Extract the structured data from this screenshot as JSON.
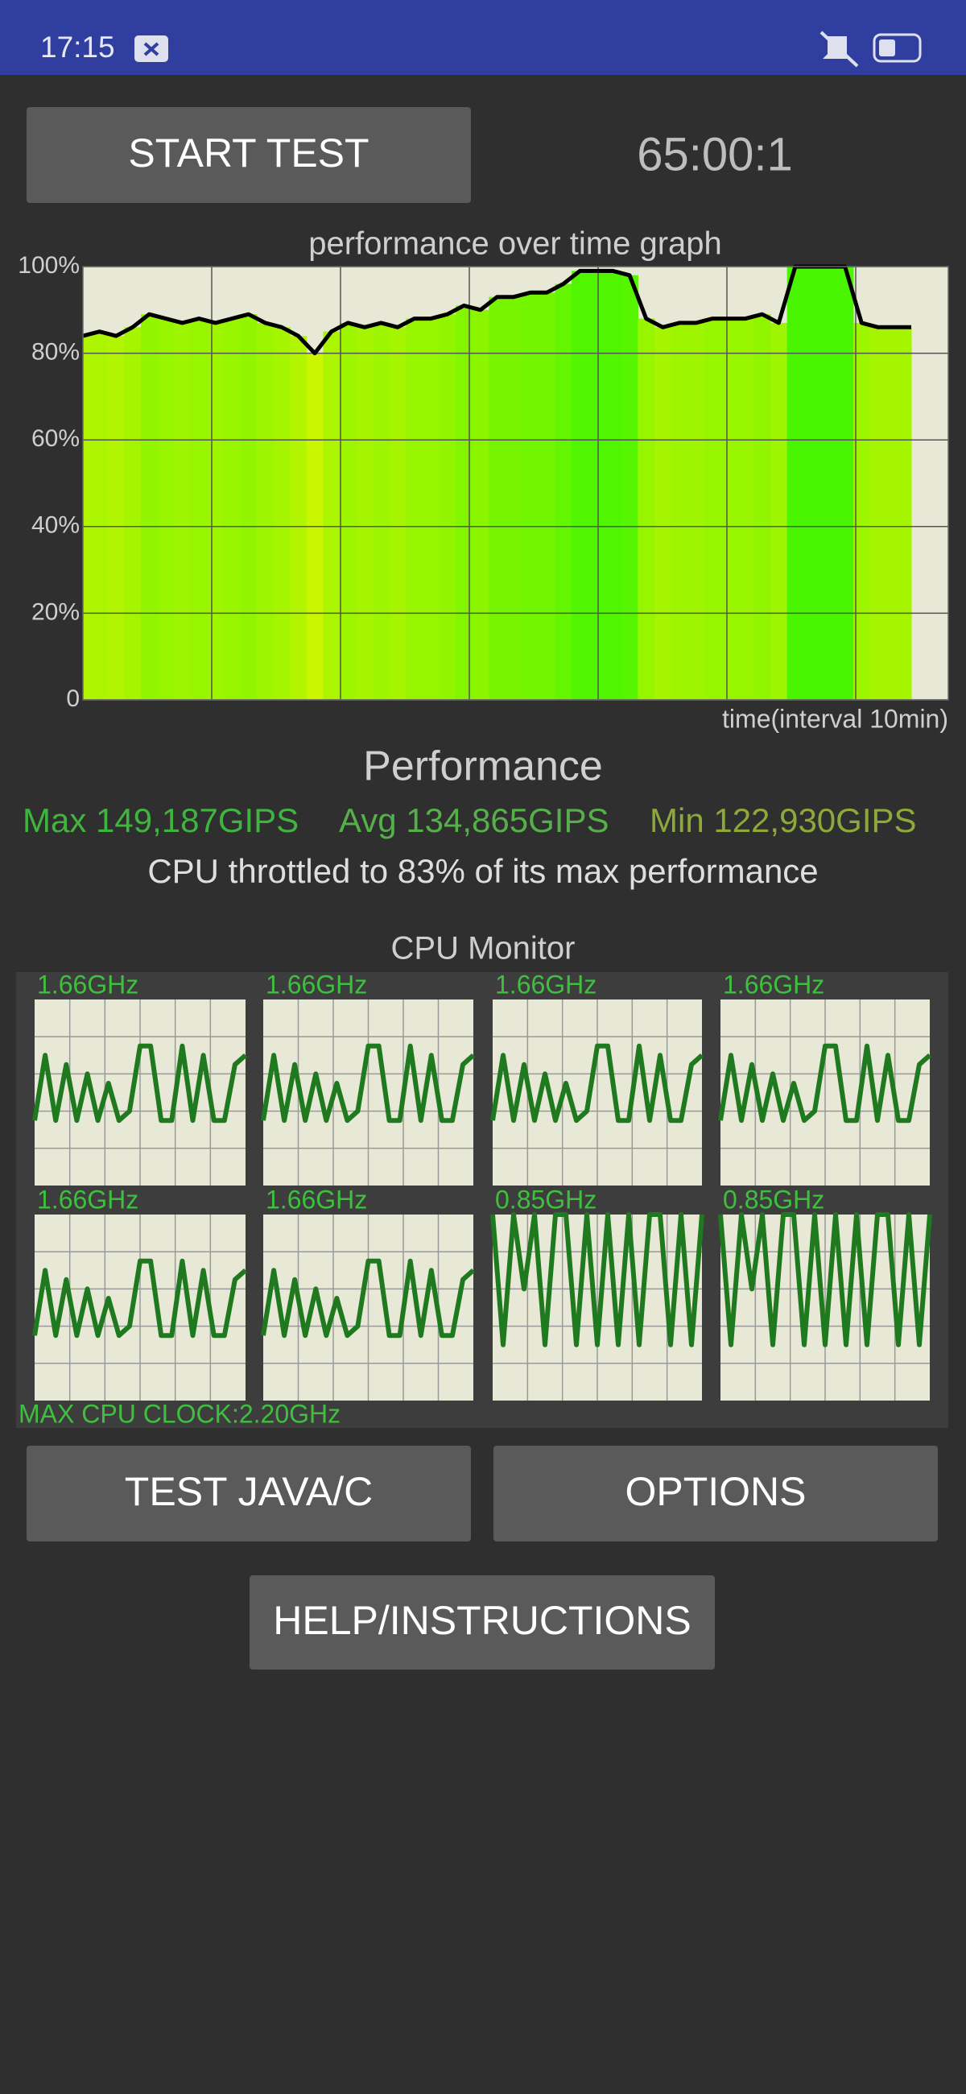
{
  "status_bar": {
    "time": "17:15"
  },
  "buttons": {
    "start": "START TEST",
    "java": "TEST JAVA/C",
    "options": "OPTIONS",
    "help": "HELP/INSTRUCTIONS"
  },
  "timer": "65:00:1",
  "chart_data": {
    "type": "line",
    "title": "performance over time graph",
    "x_label": "time(interval 10min)",
    "values": [
      84,
      85,
      84,
      86,
      89,
      88,
      87,
      88,
      87,
      88,
      89,
      87,
      86,
      84,
      80,
      85,
      87,
      86,
      87,
      86,
      88,
      88,
      89,
      91,
      90,
      93,
      93,
      94,
      94,
      96,
      99,
      99,
      99,
      98,
      88,
      86,
      87,
      87,
      88,
      88,
      88,
      89,
      87,
      100,
      100,
      100,
      100,
      87,
      86,
      86,
      86
    ],
    "color": "#000000",
    "ylim": [
      0,
      100
    ],
    "yticks": [
      0,
      {
        "value": 20,
        "label": "20%"
      },
      {
        "value": 40,
        "label": "40%"
      },
      {
        "value": 60,
        "label": "60%"
      },
      {
        "value": 80,
        "label": "80%"
      },
      {
        "value": 100,
        "label": "100%"
      }
    ],
    "grid": true
  },
  "performance": {
    "heading": "Performance",
    "max": "Max 149,187GIPS",
    "avg": "Avg 134,865GIPS",
    "min": "Min 122,930GIPS",
    "throttle": "CPU throttled to 83% of its max performance"
  },
  "cpu_monitor": {
    "title": "CPU Monitor",
    "max_clock": "MAX CPU CLOCK:2.20GHz",
    "cores": [
      {
        "label": "1.66GHz",
        "values": [
          35,
          70,
          35,
          65,
          35,
          60,
          35,
          55,
          35,
          40,
          75,
          75,
          35,
          35,
          75,
          35,
          70,
          35,
          35,
          65,
          70
        ]
      },
      {
        "label": "1.66GHz",
        "values": [
          35,
          70,
          35,
          65,
          35,
          60,
          35,
          55,
          35,
          40,
          75,
          75,
          35,
          35,
          75,
          35,
          70,
          35,
          35,
          65,
          70
        ]
      },
      {
        "label": "1.66GHz",
        "values": [
          35,
          70,
          35,
          65,
          35,
          60,
          35,
          55,
          35,
          40,
          75,
          75,
          35,
          35,
          75,
          35,
          70,
          35,
          35,
          65,
          70
        ]
      },
      {
        "label": "1.66GHz",
        "values": [
          35,
          70,
          35,
          65,
          35,
          60,
          35,
          55,
          35,
          40,
          75,
          75,
          35,
          35,
          75,
          35,
          70,
          35,
          35,
          65,
          70
        ]
      },
      {
        "label": "1.66GHz",
        "values": [
          35,
          70,
          35,
          65,
          35,
          60,
          35,
          55,
          35,
          40,
          75,
          75,
          35,
          35,
          75,
          35,
          70,
          35,
          35,
          65,
          70
        ]
      },
      {
        "label": "1.66GHz",
        "values": [
          35,
          70,
          35,
          65,
          35,
          60,
          35,
          55,
          35,
          40,
          75,
          75,
          35,
          35,
          75,
          35,
          70,
          35,
          35,
          65,
          70
        ]
      },
      {
        "label": "0.85GHz",
        "values": [
          100,
          30,
          100,
          60,
          100,
          30,
          100,
          100,
          30,
          100,
          30,
          100,
          30,
          100,
          30,
          100,
          100,
          30,
          100,
          30,
          100
        ]
      },
      {
        "label": "0.85GHz",
        "values": [
          100,
          30,
          100,
          60,
          100,
          30,
          100,
          100,
          30,
          100,
          30,
          100,
          30,
          100,
          30,
          100,
          100,
          30,
          100,
          30,
          100
        ]
      }
    ]
  }
}
